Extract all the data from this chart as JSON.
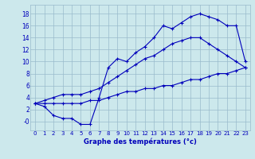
{
  "xlabel": "Graphe des températures (°c)",
  "background_color": "#cce8ec",
  "grid_color": "#99bbcc",
  "line_color": "#0000bb",
  "hours": [
    0,
    1,
    2,
    3,
    4,
    5,
    6,
    7,
    8,
    9,
    10,
    11,
    12,
    13,
    14,
    15,
    16,
    17,
    18,
    19,
    20,
    21,
    22,
    23
  ],
  "temp_actual": [
    3.0,
    2.5,
    1.0,
    0.5,
    0.5,
    -0.5,
    -0.5,
    4.0,
    9.0,
    10.5,
    10.0,
    11.5,
    12.5,
    14.0,
    16.0,
    15.5,
    16.5,
    17.5,
    18.0,
    17.5,
    17.0,
    16.0,
    16.0,
    10.0
  ],
  "temp_max": [
    3.0,
    3.5,
    4.0,
    4.5,
    4.5,
    4.5,
    5.0,
    5.5,
    6.5,
    7.5,
    8.5,
    9.5,
    10.5,
    11.0,
    12.0,
    13.0,
    13.5,
    14.0,
    14.0,
    13.0,
    12.0,
    11.0,
    10.0,
    9.0
  ],
  "temp_min": [
    3.0,
    3.0,
    3.0,
    3.0,
    3.0,
    3.0,
    3.5,
    3.5,
    4.0,
    4.5,
    5.0,
    5.0,
    5.5,
    5.5,
    6.0,
    6.0,
    6.5,
    7.0,
    7.0,
    7.5,
    8.0,
    8.0,
    8.5,
    9.0
  ],
  "ylim": [
    -1.5,
    19.5
  ],
  "xlim": [
    -0.5,
    23.5
  ],
  "ytick_vals": [
    0,
    2,
    4,
    6,
    8,
    10,
    12,
    14,
    16,
    18
  ],
  "ytick_labels": [
    "-0",
    "2",
    "4",
    "6",
    "8",
    "10",
    "12",
    "14",
    "16",
    "18"
  ],
  "xticks": [
    0,
    1,
    2,
    3,
    4,
    5,
    6,
    7,
    8,
    9,
    10,
    11,
    12,
    13,
    14,
    15,
    16,
    17,
    18,
    19,
    20,
    21,
    22,
    23
  ]
}
